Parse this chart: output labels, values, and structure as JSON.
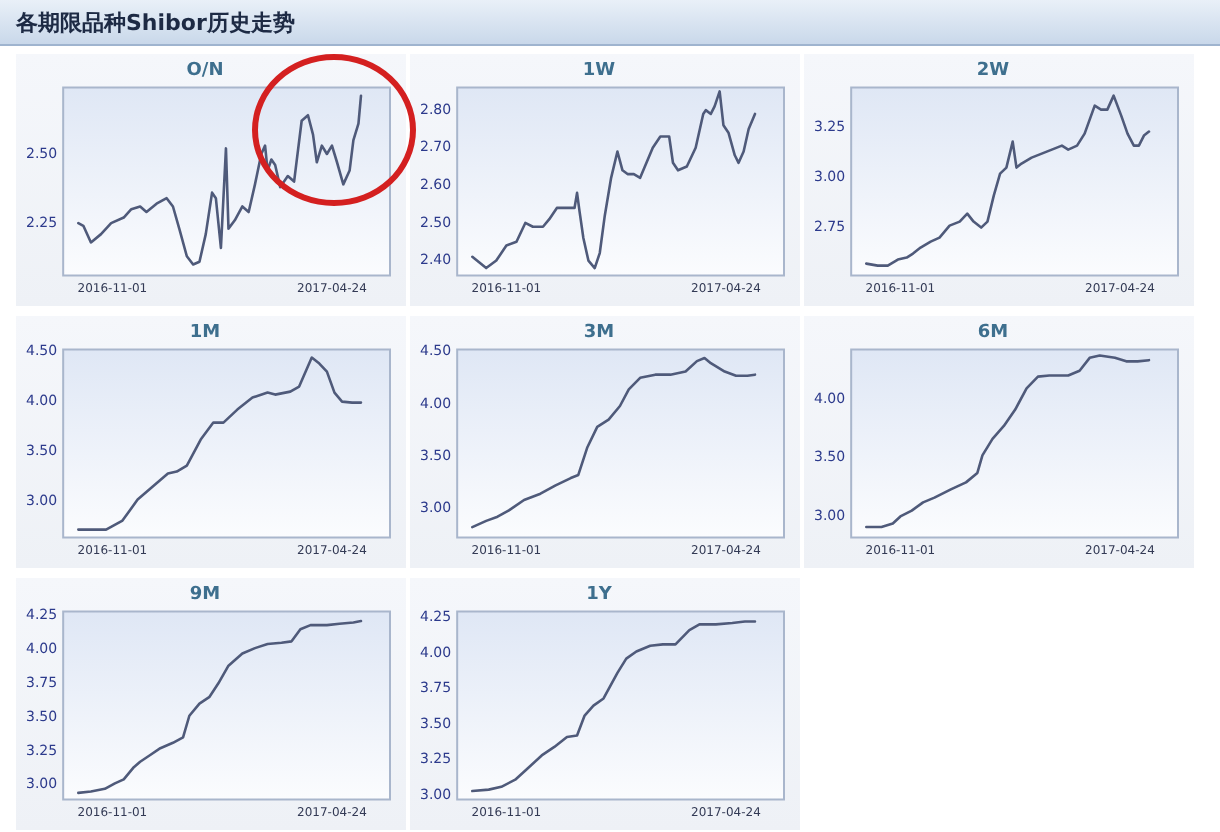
{
  "chart_data": [
    {
      "type": "line",
      "title": "O/N",
      "annotations": [
        "各期限品种Shibor历史走势"
      ],
      "color": "#4f5a7a",
      "xlim": [
        "2016-09-23",
        "2017-06-09"
      ],
      "xticks": [
        "2016-11-01",
        "2017-04-24"
      ],
      "ylim": [
        2.06,
        2.74
      ],
      "yticks": [
        {
          "value": 2.25,
          "label": "2.25"
        },
        {
          "value": 2.5,
          "label": "2.50"
        }
      ],
      "x": [
        "2016-10-05",
        "2016-10-09",
        "2016-10-15",
        "2016-10-23",
        "2016-10-31",
        "2016-11-10",
        "2016-11-16",
        "2016-11-23",
        "2016-11-28",
        "2016-12-06",
        "2016-12-14",
        "2016-12-19",
        "2016-12-24",
        "2016-12-30",
        "2017-01-04",
        "2017-01-09",
        "2017-01-14",
        "2017-01-19",
        "2017-01-22",
        "2017-01-26",
        "2017-01-30",
        "2017-02-01",
        "2017-02-06",
        "2017-02-12",
        "2017-02-17",
        "2017-02-22",
        "2017-02-27",
        "2017-03-02",
        "2017-03-04",
        "2017-03-07",
        "2017-03-10",
        "2017-03-14",
        "2017-03-20",
        "2017-03-25",
        "2017-03-31",
        "2017-04-05",
        "2017-04-09",
        "2017-04-12",
        "2017-04-16",
        "2017-04-20",
        "2017-04-24",
        "2017-04-28",
        "2017-05-03",
        "2017-05-08",
        "2017-05-11",
        "2017-05-15",
        "2017-05-17"
      ],
      "values": [
        2.25,
        2.24,
        2.18,
        2.21,
        2.25,
        2.27,
        2.3,
        2.31,
        2.29,
        2.32,
        2.34,
        2.31,
        2.23,
        2.13,
        2.1,
        2.11,
        2.21,
        2.36,
        2.34,
        2.16,
        2.52,
        2.23,
        2.26,
        2.31,
        2.29,
        2.39,
        2.5,
        2.53,
        2.44,
        2.48,
        2.46,
        2.38,
        2.42,
        2.4,
        2.62,
        2.64,
        2.57,
        2.47,
        2.53,
        2.5,
        2.53,
        2.47,
        2.39,
        2.44,
        2.55,
        2.61,
        2.71
      ]
    },
    {
      "type": "line",
      "title": "1W",
      "color": "#4f5a7a",
      "xlim": [
        "2016-09-23",
        "2017-06-09"
      ],
      "xticks": [
        "2016-11-01",
        "2017-04-24"
      ],
      "ylim": [
        2.36,
        2.86
      ],
      "yticks": [
        {
          "value": 2.4,
          "label": "2.40"
        },
        {
          "value": 2.5,
          "label": "2.50"
        },
        {
          "value": 2.6,
          "label": "2.60"
        },
        {
          "value": 2.7,
          "label": "2.70"
        },
        {
          "value": 2.8,
          "label": "2.80"
        }
      ],
      "x": [
        "2016-10-05",
        "2016-10-16",
        "2016-10-24",
        "2016-11-01",
        "2016-11-09",
        "2016-11-16",
        "2016-11-22",
        "2016-11-30",
        "2016-12-05",
        "2016-12-11",
        "2016-12-20",
        "2016-12-25",
        "2016-12-27",
        "2016-12-29",
        "2017-01-01",
        "2017-01-05",
        "2017-01-10",
        "2017-01-14",
        "2017-01-18",
        "2017-01-23",
        "2017-01-28",
        "2017-02-01",
        "2017-02-05",
        "2017-02-10",
        "2017-02-15",
        "2017-02-20",
        "2017-02-25",
        "2017-03-03",
        "2017-03-10",
        "2017-03-13",
        "2017-03-17",
        "2017-03-24",
        "2017-03-31",
        "2017-04-06",
        "2017-04-08",
        "2017-04-12",
        "2017-04-15",
        "2017-04-19",
        "2017-04-22",
        "2017-04-26",
        "2017-05-01",
        "2017-05-04",
        "2017-05-08",
        "2017-05-12",
        "2017-05-17"
      ],
      "values": [
        2.41,
        2.38,
        2.4,
        2.44,
        2.45,
        2.5,
        2.49,
        2.49,
        2.51,
        2.54,
        2.54,
        2.54,
        2.58,
        2.53,
        2.46,
        2.4,
        2.38,
        2.42,
        2.52,
        2.62,
        2.69,
        2.64,
        2.63,
        2.63,
        2.62,
        2.66,
        2.7,
        2.73,
        2.73,
        2.66,
        2.64,
        2.65,
        2.7,
        2.79,
        2.8,
        2.79,
        2.81,
        2.85,
        2.76,
        2.74,
        2.68,
        2.66,
        2.69,
        2.75,
        2.79
      ]
    },
    {
      "type": "line",
      "title": "2W",
      "color": "#4f5a7a",
      "xlim": [
        "2016-09-23",
        "2017-06-09"
      ],
      "xticks": [
        "2016-11-01",
        "2017-04-24"
      ],
      "ylim": [
        2.51,
        3.45
      ],
      "yticks": [
        {
          "value": 2.75,
          "label": "2.75"
        },
        {
          "value": 3.0,
          "label": "3.00"
        },
        {
          "value": 3.25,
          "label": "3.25"
        }
      ],
      "x": [
        "2016-10-05",
        "2016-10-14",
        "2016-10-22",
        "2016-10-30",
        "2016-11-06",
        "2016-11-11",
        "2016-11-17",
        "2016-11-25",
        "2016-12-02",
        "2016-12-10",
        "2016-12-18",
        "2016-12-24",
        "2016-12-29",
        "2017-01-04",
        "2017-01-09",
        "2017-01-14",
        "2017-01-19",
        "2017-01-24",
        "2017-01-29",
        "2017-02-01",
        "2017-02-05",
        "2017-02-13",
        "2017-02-21",
        "2017-03-01",
        "2017-03-09",
        "2017-03-14",
        "2017-03-21",
        "2017-03-27",
        "2017-04-04",
        "2017-04-09",
        "2017-04-14",
        "2017-04-19",
        "2017-04-25",
        "2017-04-30",
        "2017-05-05",
        "2017-05-09",
        "2017-05-13",
        "2017-05-17"
      ],
      "values": [
        2.57,
        2.56,
        2.56,
        2.59,
        2.6,
        2.62,
        2.65,
        2.68,
        2.7,
        2.76,
        2.78,
        2.82,
        2.78,
        2.75,
        2.78,
        2.91,
        3.02,
        3.05,
        3.18,
        3.05,
        3.07,
        3.1,
        3.12,
        3.14,
        3.16,
        3.14,
        3.16,
        3.22,
        3.36,
        3.34,
        3.34,
        3.41,
        3.31,
        3.22,
        3.16,
        3.16,
        3.21,
        3.23
      ]
    },
    {
      "type": "line",
      "title": "1M",
      "color": "#4f5a7a",
      "xlim": [
        "2016-09-23",
        "2017-06-09"
      ],
      "xticks": [
        "2016-11-01",
        "2017-04-24"
      ],
      "ylim": [
        2.64,
        4.52
      ],
      "yticks": [
        {
          "value": 3.0,
          "label": "3.00"
        },
        {
          "value": 3.5,
          "label": "3.50"
        },
        {
          "value": 4.0,
          "label": "4.00"
        },
        {
          "value": 4.5,
          "label": "4.50"
        }
      ],
      "x": [
        "2016-10-05",
        "2016-10-27",
        "2016-11-09",
        "2016-11-21",
        "2016-12-03",
        "2016-12-15",
        "2016-12-22",
        "2016-12-30",
        "2017-01-10",
        "2017-01-20",
        "2017-01-28",
        "2017-02-08",
        "2017-02-20",
        "2017-03-04",
        "2017-03-10",
        "2017-03-22",
        "2017-03-29",
        "2017-04-08",
        "2017-04-14",
        "2017-04-20",
        "2017-04-26",
        "2017-05-02",
        "2017-05-10",
        "2017-05-17"
      ],
      "values": [
        2.72,
        2.72,
        2.81,
        3.02,
        3.15,
        3.28,
        3.3,
        3.36,
        3.62,
        3.79,
        3.79,
        3.92,
        4.04,
        4.09,
        4.07,
        4.1,
        4.15,
        4.44,
        4.38,
        4.3,
        4.09,
        4.0,
        3.99,
        3.99
      ]
    },
    {
      "type": "line",
      "title": "3M",
      "color": "#4f5a7a",
      "xlim": [
        "2016-09-23",
        "2017-06-09"
      ],
      "xticks": [
        "2016-11-01",
        "2017-04-24"
      ],
      "ylim": [
        2.72,
        4.52
      ],
      "yticks": [
        {
          "value": 3.0,
          "label": "3.00"
        },
        {
          "value": 3.5,
          "label": "3.50"
        },
        {
          "value": 4.0,
          "label": "4.00"
        },
        {
          "value": 4.5,
          "label": "4.50"
        }
      ],
      "x": [
        "2016-10-05",
        "2016-10-16",
        "2016-10-25",
        "2016-11-03",
        "2016-11-15",
        "2016-11-28",
        "2016-12-10",
        "2016-12-22",
        "2016-12-28",
        "2017-01-04",
        "2017-01-12",
        "2017-01-21",
        "2017-01-30",
        "2017-02-06",
        "2017-02-15",
        "2017-02-27",
        "2017-03-11",
        "2017-03-23",
        "2017-04-01",
        "2017-04-07",
        "2017-04-12",
        "2017-04-23",
        "2017-05-02",
        "2017-05-11",
        "2017-05-17"
      ],
      "values": [
        2.82,
        2.88,
        2.92,
        2.98,
        3.08,
        3.14,
        3.22,
        3.29,
        3.32,
        3.58,
        3.78,
        3.85,
        3.98,
        4.14,
        4.25,
        4.28,
        4.28,
        4.31,
        4.41,
        4.44,
        4.39,
        4.31,
        4.27,
        4.27,
        4.28
      ]
    },
    {
      "type": "line",
      "title": "6M",
      "color": "#4f5a7a",
      "xlim": [
        "2016-09-23",
        "2017-06-09"
      ],
      "xticks": [
        "2016-11-01",
        "2017-04-24"
      ],
      "ylim": [
        2.82,
        4.42
      ],
      "yticks": [
        {
          "value": 3.0,
          "label": "3.00"
        },
        {
          "value": 3.5,
          "label": "3.50"
        },
        {
          "value": 4.0,
          "label": "4.00"
        }
      ],
      "x": [
        "2016-10-05",
        "2016-10-17",
        "2016-10-26",
        "2016-11-01",
        "2016-11-10",
        "2016-11-19",
        "2016-11-28",
        "2016-12-11",
        "2016-12-23",
        "2017-01-01",
        "2017-01-05",
        "2017-01-13",
        "2017-01-22",
        "2017-01-31",
        "2017-02-09",
        "2017-02-18",
        "2017-02-27",
        "2017-03-14",
        "2017-03-23",
        "2017-03-31",
        "2017-04-08",
        "2017-04-20",
        "2017-04-29",
        "2017-05-08",
        "2017-05-17"
      ],
      "values": [
        2.91,
        2.91,
        2.94,
        3.0,
        3.05,
        3.12,
        3.16,
        3.23,
        3.29,
        3.37,
        3.52,
        3.66,
        3.77,
        3.91,
        4.09,
        4.19,
        4.2,
        4.2,
        4.24,
        4.35,
        4.37,
        4.35,
        4.32,
        4.32,
        4.33
      ]
    },
    {
      "type": "line",
      "title": "9M",
      "color": "#4f5a7a",
      "xlim": [
        "2016-09-23",
        "2017-06-09"
      ],
      "xticks": [
        "2016-11-01",
        "2017-04-24"
      ],
      "ylim": [
        2.89,
        4.28
      ],
      "yticks": [
        {
          "value": 3.0,
          "label": "3.00"
        },
        {
          "value": 3.25,
          "label": "3.25"
        },
        {
          "value": 3.5,
          "label": "3.50"
        },
        {
          "value": 3.75,
          "label": "3.75"
        },
        {
          "value": 4.0,
          "label": "4.00"
        },
        {
          "value": 4.25,
          "label": "4.25"
        }
      ],
      "x": [
        "2016-10-05",
        "2016-10-15",
        "2016-10-26",
        "2016-11-03",
        "2016-11-10",
        "2016-11-18",
        "2016-11-23",
        "2016-12-01",
        "2016-12-09",
        "2016-12-19",
        "2016-12-27",
        "2017-01-01",
        "2017-01-09",
        "2017-01-17",
        "2017-01-24",
        "2017-02-01",
        "2017-02-12",
        "2017-02-22",
        "2017-03-04",
        "2017-03-15",
        "2017-03-23",
        "2017-03-30",
        "2017-04-07",
        "2017-04-20",
        "2017-04-30",
        "2017-05-11",
        "2017-05-17"
      ],
      "values": [
        2.94,
        2.95,
        2.97,
        3.01,
        3.04,
        3.13,
        3.17,
        3.22,
        3.27,
        3.31,
        3.35,
        3.51,
        3.6,
        3.65,
        3.75,
        3.88,
        3.97,
        4.01,
        4.04,
        4.05,
        4.06,
        4.15,
        4.18,
        4.18,
        4.19,
        4.2,
        4.21
      ]
    },
    {
      "type": "line",
      "title": "1Y",
      "color": "#4f5a7a",
      "xlim": [
        "2016-09-23",
        "2017-06-09"
      ],
      "xticks": [
        "2016-11-01",
        "2017-04-24"
      ],
      "ylim": [
        2.97,
        4.29
      ],
      "yticks": [
        {
          "value": 3.0,
          "label": "3.00"
        },
        {
          "value": 3.25,
          "label": "3.25"
        },
        {
          "value": 3.5,
          "label": "3.50"
        },
        {
          "value": 3.75,
          "label": "3.75"
        },
        {
          "value": 4.0,
          "label": "4.00"
        },
        {
          "value": 4.25,
          "label": "4.25"
        }
      ],
      "x": [
        "2016-10-05",
        "2016-10-18",
        "2016-10-28",
        "2016-11-08",
        "2016-11-18",
        "2016-11-29",
        "2016-12-09",
        "2016-12-19",
        "2016-12-27",
        "2017-01-02",
        "2017-01-09",
        "2017-01-17",
        "2017-01-28",
        "2017-02-04",
        "2017-02-12",
        "2017-02-23",
        "2017-03-05",
        "2017-03-15",
        "2017-03-26",
        "2017-04-03",
        "2017-04-16",
        "2017-04-29",
        "2017-05-09",
        "2017-05-17"
      ],
      "values": [
        3.03,
        3.04,
        3.06,
        3.11,
        3.19,
        3.28,
        3.34,
        3.41,
        3.42,
        3.56,
        3.63,
        3.68,
        3.86,
        3.96,
        4.01,
        4.05,
        4.06,
        4.06,
        4.16,
        4.2,
        4.2,
        4.21,
        4.22,
        4.22
      ]
    }
  ]
}
